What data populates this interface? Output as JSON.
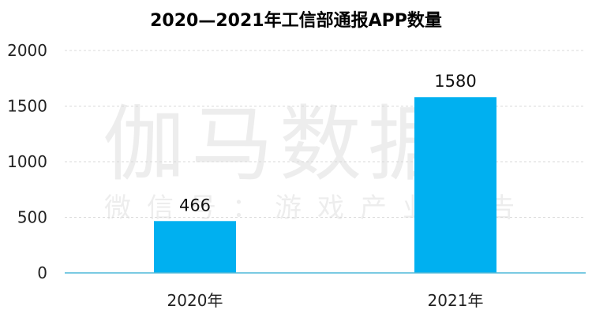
{
  "chart_data": {
    "type": "bar",
    "title": "2020—2021年工信部通报APP数量",
    "categories": [
      "2020年",
      "2021年"
    ],
    "values": [
      466,
      1580
    ],
    "data_labels": [
      "466",
      "1580"
    ],
    "ylim": [
      0,
      2000
    ],
    "yticks": [
      "0",
      "500",
      "1000",
      "1500",
      "2000"
    ],
    "xlabel": "",
    "ylabel": "",
    "grid": true,
    "legend": "none",
    "bar_color": "#00B0F0"
  },
  "watermark": {
    "main": "伽马数据",
    "sub": "微信号：游戏产业报告"
  }
}
